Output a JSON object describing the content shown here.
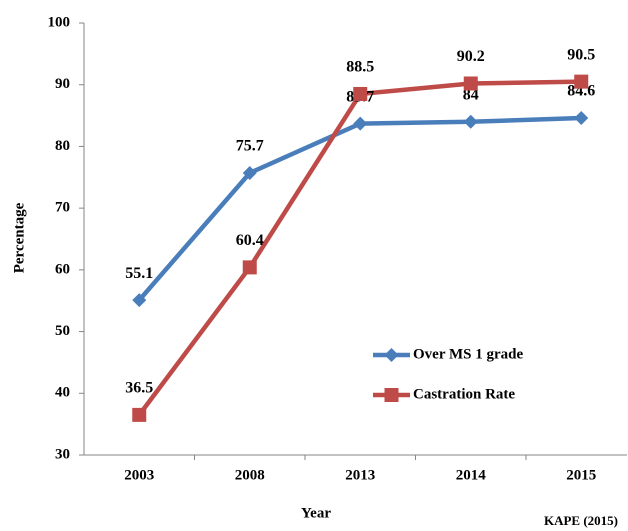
{
  "chart_data": {
    "type": "line",
    "categories": [
      "2003",
      "2008",
      "2013",
      "2014",
      "2015"
    ],
    "series": [
      {
        "name": "Over MS 1 grade",
        "color": "#4a7ebb",
        "marker": "diamond",
        "values": [
          55.1,
          75.7,
          83.7,
          84,
          84.6
        ]
      },
      {
        "name": "Castration Rate",
        "color": "#be4b48",
        "marker": "square",
        "values": [
          36.5,
          60.4,
          88.5,
          90.2,
          90.5
        ]
      }
    ],
    "ylim": [
      30,
      100
    ],
    "yticks": [
      30,
      40,
      50,
      60,
      70,
      80,
      90,
      100
    ],
    "ylabel": "Percentage",
    "xlabel": "Year",
    "source": "KAPE (2015)",
    "legend": "right",
    "grid": false
  }
}
